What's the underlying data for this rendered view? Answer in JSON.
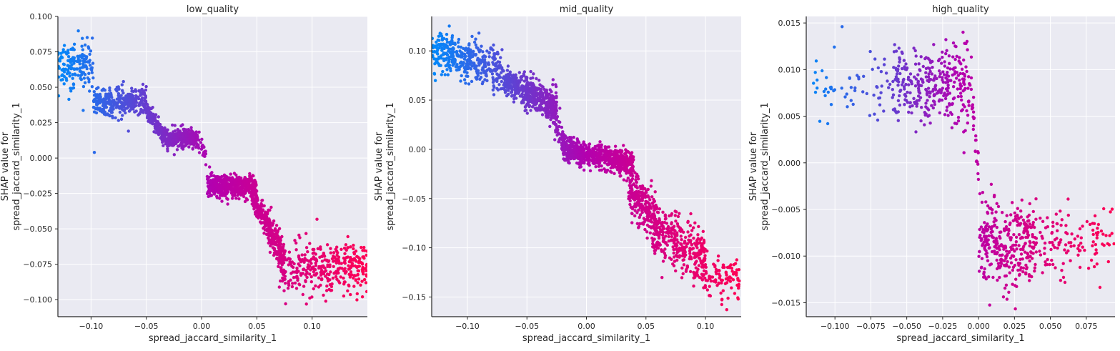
{
  "figure": {
    "background": "#ffffff",
    "axes_facecolor": "#eaeaf2",
    "grid_color": "#ffffff"
  },
  "colormap": {
    "low": "#008afb",
    "mid": "#b400ae",
    "high": "#ff0052"
  },
  "chart_data": [
    {
      "type": "scatter",
      "title": "low_quality",
      "xlabel": "spread_jaccard_similarity_1",
      "ylabel": [
        "SHAP value for",
        "spread_jaccard_similarity_1"
      ],
      "xlim": [
        -0.13,
        0.15
      ],
      "ylim": [
        -0.112,
        0.1
      ],
      "xticks": [
        -0.1,
        -0.05,
        0.0,
        0.05,
        0.1
      ],
      "xtick_labels": [
        "−0.10",
        "−0.05",
        "0.00",
        "0.05",
        "0.10"
      ],
      "yticks": [
        -0.1,
        -0.075,
        -0.05,
        -0.025,
        0.0,
        0.025,
        0.05,
        0.075,
        0.1
      ],
      "ytick_labels": [
        "−0.100",
        "−0.075",
        "−0.050",
        "−0.025",
        "0.000",
        "0.025",
        "0.050",
        "0.075",
        "0.100"
      ],
      "grid": true,
      "color_by": "spread_jaccard_similarity_1",
      "clusters": [
        {
          "x": [
            -0.13,
            -0.098
          ],
          "y": 0.066,
          "spread": 0.008,
          "n": 160
        },
        {
          "x": [
            -0.098,
            -0.05
          ],
          "y": 0.04,
          "spread": 0.005,
          "n": 320
        },
        {
          "x": [
            -0.05,
            -0.035
          ],
          "y": [
            0.034,
            0.017
          ],
          "spread": 0.003,
          "n": 140
        },
        {
          "x": [
            -0.035,
            -0.005
          ],
          "y": 0.014,
          "spread": 0.003,
          "n": 320
        },
        {
          "x": [
            -0.005,
            0.005
          ],
          "y": [
            0.015,
            0.0
          ],
          "spread": 0.004,
          "n": 40
        },
        {
          "x": [
            0.005,
            0.05
          ],
          "y": -0.02,
          "spread": 0.004,
          "n": 520
        },
        {
          "x": [
            0.045,
            0.062
          ],
          "y": [
            -0.025,
            -0.05
          ],
          "spread": 0.004,
          "n": 150
        },
        {
          "x": [
            0.06,
            0.075
          ],
          "y": [
            -0.05,
            -0.07
          ],
          "spread": 0.006,
          "n": 170
        },
        {
          "x": [
            0.07,
            0.15
          ],
          "y": -0.077,
          "spread": 0.009,
          "n": 360
        }
      ],
      "outliers": [
        {
          "x": -0.097,
          "y": 0.004
        }
      ]
    },
    {
      "type": "scatter",
      "title": "mid_quality",
      "xlabel": "spread_jaccard_similarity_1",
      "ylabel": [
        "SHAP value for",
        "spread_jaccard_similarity_1"
      ],
      "xlim": [
        -0.13,
        0.13
      ],
      "ylim": [
        -0.17,
        0.135
      ],
      "xticks": [
        -0.1,
        -0.05,
        0.0,
        0.05,
        0.1
      ],
      "xtick_labels": [
        "−0.10",
        "−0.05",
        "0.00",
        "0.05",
        "0.10"
      ],
      "yticks": [
        -0.15,
        -0.1,
        -0.05,
        0.0,
        0.05,
        0.1
      ],
      "ytick_labels": [
        "−0.15",
        "−0.10",
        "−0.05",
        "0.00",
        "0.05",
        "0.10"
      ],
      "grid": true,
      "color_by": "spread_jaccard_similarity_1",
      "clusters": [
        {
          "x": [
            -0.13,
            -0.07
          ],
          "y": [
            0.1,
            0.08
          ],
          "spread": 0.011,
          "n": 380
        },
        {
          "x": [
            -0.07,
            -0.025
          ],
          "y": [
            0.07,
            0.043
          ],
          "spread": 0.008,
          "n": 480
        },
        {
          "x": [
            -0.03,
            -0.018
          ],
          "y": [
            0.045,
            0.0
          ],
          "spread": 0.007,
          "n": 80
        },
        {
          "x": [
            -0.02,
            0.04
          ],
          "y": [
            0.0,
            -0.015
          ],
          "spread": 0.006,
          "n": 700
        },
        {
          "x": [
            0.035,
            0.06
          ],
          "y": [
            -0.04,
            -0.075
          ],
          "spread": 0.012,
          "n": 240
        },
        {
          "x": [
            0.055,
            0.1
          ],
          "y": [
            -0.08,
            -0.11
          ],
          "spread": 0.013,
          "n": 320
        },
        {
          "x": [
            0.09,
            0.13
          ],
          "y": -0.13,
          "spread": 0.01,
          "n": 120
        }
      ],
      "outliers": []
    },
    {
      "type": "scatter",
      "title": "high_quality",
      "xlabel": "spread_jaccard_similarity_1",
      "ylabel": [
        "SHAP value for",
        "spread_jaccard_similarity_1"
      ],
      "xlim": [
        -0.12,
        0.095
      ],
      "ylim": [
        -0.0165,
        0.0157
      ],
      "xticks": [
        -0.1,
        -0.075,
        -0.05,
        -0.025,
        0.0,
        0.025,
        0.05,
        0.075
      ],
      "xtick_labels": [
        "−0.100",
        "−0.075",
        "−0.050",
        "−0.025",
        "0.000",
        "0.025",
        "0.050",
        "0.075"
      ],
      "yticks": [
        -0.015,
        -0.01,
        -0.005,
        0.0,
        0.005,
        0.01,
        0.015
      ],
      "ytick_labels": [
        "−0.015",
        "−0.010",
        "−0.005",
        "0.000",
        "0.005",
        "0.010",
        "0.015"
      ],
      "grid": true,
      "color_by": "spread_jaccard_similarity_1",
      "clusters": [
        {
          "x": [
            -0.115,
            -0.06
          ],
          "y": 0.0085,
          "spread": 0.0017,
          "n": 60
        },
        {
          "x": [
            -0.06,
            -0.005
          ],
          "y": 0.0082,
          "spread": 0.0022,
          "n": 330
        },
        {
          "x": [
            -0.005,
            0.0
          ],
          "y": [
            0.007,
            -0.001
          ],
          "spread": 0.0009,
          "n": 24
        },
        {
          "x": [
            0.0,
            0.04
          ],
          "y": -0.0088,
          "spread": 0.0022,
          "n": 330
        },
        {
          "x": [
            0.04,
            0.095
          ],
          "y": -0.0085,
          "spread": 0.0017,
          "n": 120
        }
      ],
      "outliers": [
        {
          "x": -0.095,
          "y": 0.0146
        },
        {
          "x": -0.105,
          "y": 0.0042
        }
      ]
    }
  ]
}
